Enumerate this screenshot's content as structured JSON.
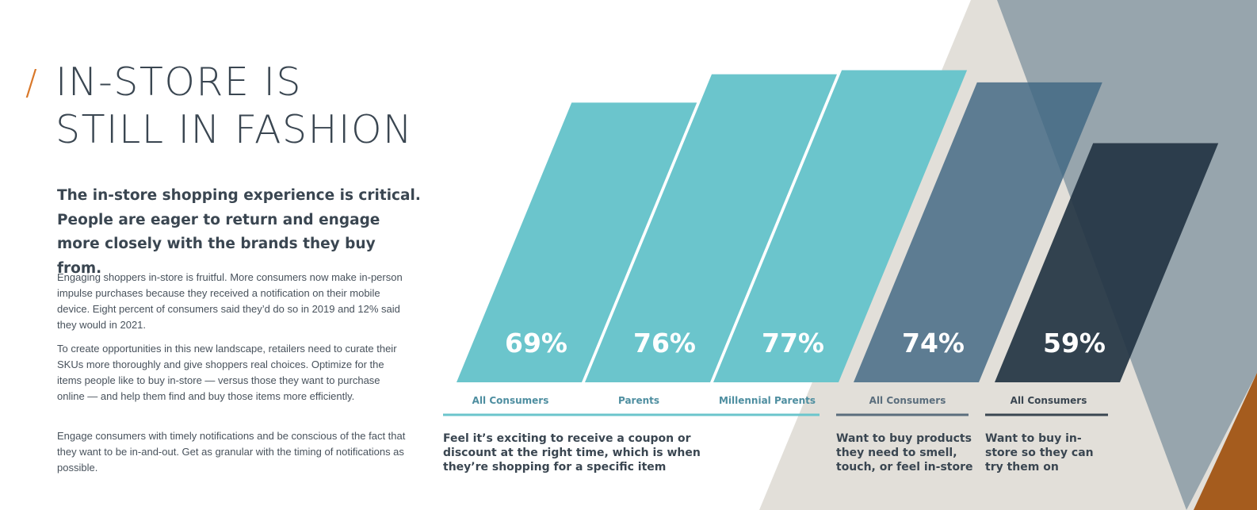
{
  "title": {
    "slash": "/",
    "line1": "IN-STORE IS",
    "line2": "STILL IN FASHION"
  },
  "lead": "The in-store shopping experience is critical. People are eager to return and engage more closely with the brands they buy from.",
  "paragraphs": [
    "Engaging shoppers in-store is fruitful. More consumers now make in-person impulse purchases because they received a notification on their mobile device. Eight percent of consumers said they’d do so in 2019 and 12% said they would in 2021.",
    "To create opportunities in this new landscape, retailers need to curate their SKUs more thoroughly and give shoppers real choices. Optimize for the items people like to buy in-store — versus those they want to purchase online — and help them find and buy those items more efficiently.",
    "Engage consumers with timely notifications and be conscious of the fact that they want to be in-and-out. Get as granular with the timing of notifications as possible."
  ],
  "captions": [
    "Feel it’s exciting to receive a coupon or discount at the right time, which is when they’re shopping for a specific item",
    "Want to buy products they need to smell, touch, or feel in-store",
    "Want to buy in-store so they can try them on"
  ],
  "colors": {
    "teal": "#6bc5cc",
    "slate_blue": "#3f6682",
    "navy": "#233443",
    "accent_orange": "#d9782a",
    "light_gray": "#e2dfd9",
    "gray_blue": "#97a5ad",
    "brown_orange": "#a55c1e"
  },
  "chart_data": {
    "type": "bar",
    "unit": "%",
    "bars": [
      {
        "category": "All Consumers",
        "value": 69,
        "label": "69%",
        "color": "#6bc5cc",
        "group": 0
      },
      {
        "category": "Parents",
        "value": 76,
        "label": "76%",
        "color": "#6bc5cc",
        "group": 0
      },
      {
        "category": "Millennial Parents",
        "value": 77,
        "label": "77%",
        "color": "#6bc5cc",
        "group": 0
      },
      {
        "category": "All Consumers",
        "value": 74,
        "label": "74%",
        "color": "#3f6682",
        "group": 1
      },
      {
        "category": "All Consumers",
        "value": 59,
        "label": "59%",
        "color": "#233443",
        "group": 2
      }
    ]
  }
}
